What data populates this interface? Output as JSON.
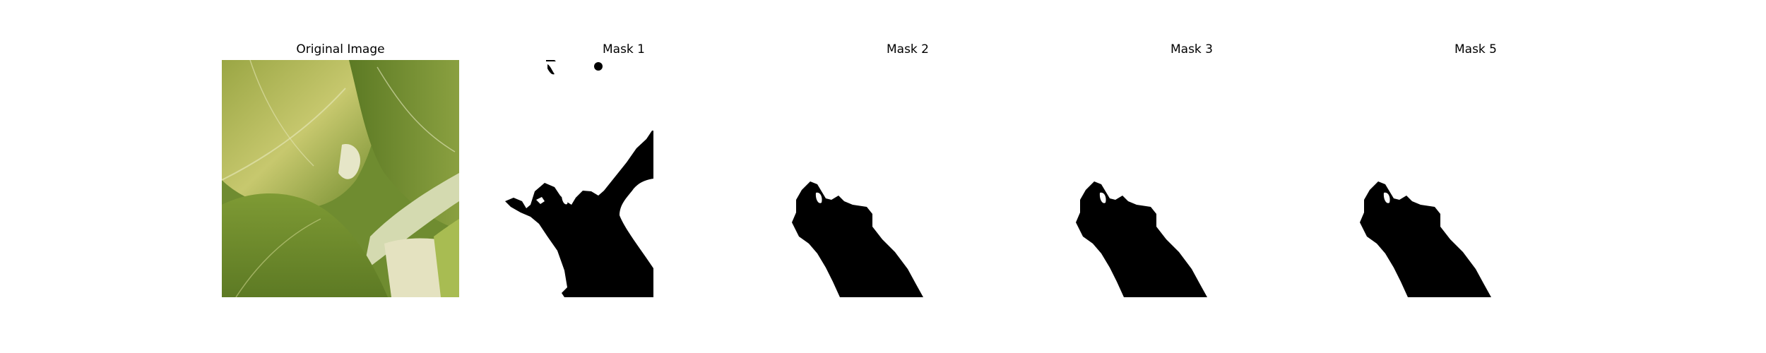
{
  "panels": [
    {
      "title": "Original Image"
    },
    {
      "title": "Mask 1"
    },
    {
      "title": "Mask 2"
    },
    {
      "title": "Mask 3"
    },
    {
      "title": "Mask 5"
    }
  ],
  "colors": {
    "mask_foreground": "#000000",
    "mask_background": "#ffffff",
    "leaf_light": "#c9c96a",
    "leaf_mid": "#8fa040",
    "leaf_dark": "#4f6a22",
    "stem": "#d8dcb8"
  }
}
